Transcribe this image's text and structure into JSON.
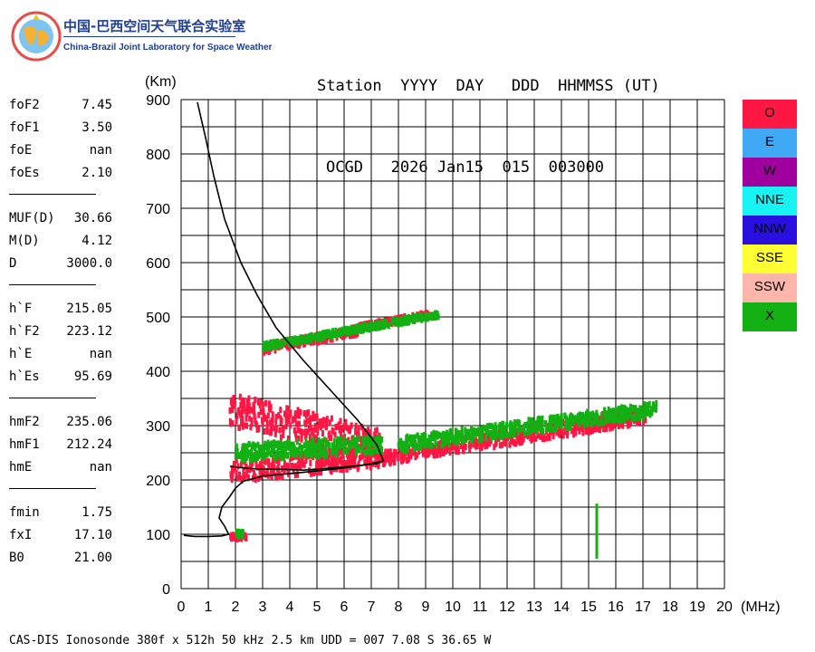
{
  "logo": {
    "cn": "中国-巴西空间天气联合实验室",
    "en": "China-Brazil Joint Laboratory for Space Weather"
  },
  "header": {
    "line1": "Station  YYYY  DAY   DDD  HHMMSS (UT)",
    "line2": "OCGD   2026 Jan15  015  003000"
  },
  "params": {
    "group1": [
      {
        "key": "foF2",
        "value": "7.45"
      },
      {
        "key": "foF1",
        "value": "3.50"
      },
      {
        "key": "foE",
        "value": "nan"
      },
      {
        "key": "foEs",
        "value": "2.10"
      }
    ],
    "group2": [
      {
        "key": "MUF(D)",
        "value": "30.66"
      },
      {
        "key": "M(D)",
        "value": "4.12"
      },
      {
        "key": "D",
        "value": "3000.0"
      }
    ],
    "group3": [
      {
        "key": "h`F",
        "value": "215.05"
      },
      {
        "key": "h`F2",
        "value": "223.12"
      },
      {
        "key": "h`E",
        "value": "nan"
      },
      {
        "key": "h`Es",
        "value": "95.69"
      }
    ],
    "group4": [
      {
        "key": "hmF2",
        "value": "235.06"
      },
      {
        "key": "hmF1",
        "value": "212.24"
      },
      {
        "key": "hmE",
        "value": "nan"
      }
    ],
    "group5": [
      {
        "key": "fmin",
        "value": "1.75"
      },
      {
        "key": "fxI",
        "value": "17.10"
      },
      {
        "key": "B0",
        "value": "21.00"
      }
    ]
  },
  "legend": [
    {
      "label": "O",
      "color": "#ff1744"
    },
    {
      "label": "E",
      "color": "#3fa9f5"
    },
    {
      "label": "W",
      "color": "#a0009d"
    },
    {
      "label": "NNE",
      "color": "#17f2f2"
    },
    {
      "label": "NNW",
      "color": "#2a10e0"
    },
    {
      "label": "SSE",
      "color": "#ffff33"
    },
    {
      "label": "SSW",
      "color": "#ffb6aa"
    },
    {
      "label": "X",
      "color": "#12b012"
    }
  ],
  "footer": "CAS-DIS Ionosonde 380f x 512h 50 kHz 2.5 km UDD = 007 7.08 S 36.65 W",
  "chart_data": {
    "type": "scatter",
    "xlabel": "(MHz)",
    "ylabel": "(Km)",
    "xlim": [
      0,
      20
    ],
    "ylim": [
      0,
      900
    ],
    "xticks": [
      0,
      1,
      2,
      3,
      4,
      5,
      6,
      7,
      8,
      9,
      10,
      11,
      12,
      13,
      14,
      15,
      16,
      17,
      18,
      19,
      20
    ],
    "yticks": [
      0,
      100,
      200,
      300,
      400,
      500,
      600,
      700,
      800,
      900
    ],
    "grid": true,
    "legend_position": "right",
    "series": [
      {
        "name": "O",
        "color": "#ff1744",
        "trace_type": "echo-bands",
        "bands": [
          {
            "f_start": 1.8,
            "f_end": 7.4,
            "h_start": 215,
            "h_end": 245,
            "thickness": 40
          },
          {
            "f_start": 7.4,
            "f_end": 11.5,
            "h_start": 240,
            "h_end": 275,
            "thickness": 25
          },
          {
            "f_start": 11.5,
            "f_end": 17.1,
            "h_start": 275,
            "h_end": 320,
            "thickness": 30
          },
          {
            "f_start": 1.8,
            "f_end": 7.4,
            "h_start": 330,
            "h_end": 260,
            "thickness": 60
          },
          {
            "f_start": 3.0,
            "f_end": 6.5,
            "h_start": 440,
            "h_end": 475,
            "thickness": 15
          },
          {
            "f_start": 6.5,
            "f_end": 9.2,
            "h_start": 480,
            "h_end": 505,
            "thickness": 10
          },
          {
            "f_start": 1.8,
            "f_end": 2.4,
            "h_start": 95,
            "h_end": 95,
            "thickness": 8
          }
        ]
      },
      {
        "name": "X",
        "color": "#12b012",
        "trace_type": "echo-bands",
        "bands": [
          {
            "f_start": 2.0,
            "f_end": 7.4,
            "h_start": 250,
            "h_end": 265,
            "thickness": 30
          },
          {
            "f_start": 8.0,
            "f_end": 17.5,
            "h_start": 265,
            "h_end": 330,
            "thickness": 25
          },
          {
            "f_start": 3.0,
            "f_end": 9.5,
            "h_start": 445,
            "h_end": 505,
            "thickness": 10
          },
          {
            "f_start": 2.0,
            "f_end": 2.3,
            "h_start": 100,
            "h_end": 100,
            "thickness": 10
          },
          {
            "f_start": 15.3,
            "f_end": 15.3,
            "h_start": 80,
            "h_end": 130,
            "thickness": 50
          }
        ]
      },
      {
        "name": "profile",
        "color": "#000000",
        "trace_type": "line",
        "points": [
          [
            0.1,
            98
          ],
          [
            0.5,
            96
          ],
          [
            1.0,
            96
          ],
          [
            1.5,
            97
          ],
          [
            1.75,
            100
          ],
          [
            1.6,
            115
          ],
          [
            1.4,
            130
          ],
          [
            1.5,
            150
          ],
          [
            1.8,
            170
          ],
          [
            2.0,
            185
          ],
          [
            2.3,
            198
          ],
          [
            3.0,
            207
          ],
          [
            4.5,
            214
          ],
          [
            6.0,
            222
          ],
          [
            7.0,
            230
          ],
          [
            7.45,
            235
          ],
          [
            7.2,
            265
          ],
          [
            6.5,
            310
          ],
          [
            5.5,
            365
          ],
          [
            4.5,
            420
          ],
          [
            3.5,
            480
          ],
          [
            2.8,
            540
          ],
          [
            2.2,
            600
          ],
          [
            1.6,
            680
          ],
          [
            1.2,
            760
          ],
          [
            0.9,
            830
          ],
          [
            0.6,
            895
          ]
        ]
      },
      {
        "name": "virtual-height",
        "color": "#000000",
        "trace_type": "line",
        "points": [
          [
            1.8,
            225
          ],
          [
            2.3,
            222
          ],
          [
            2.8,
            220
          ],
          [
            3.5,
            220
          ],
          [
            4.5,
            218
          ],
          [
            5.5,
            222
          ],
          [
            6.5,
            226
          ],
          [
            7.2,
            230
          ],
          [
            7.45,
            235
          ]
        ]
      }
    ]
  }
}
